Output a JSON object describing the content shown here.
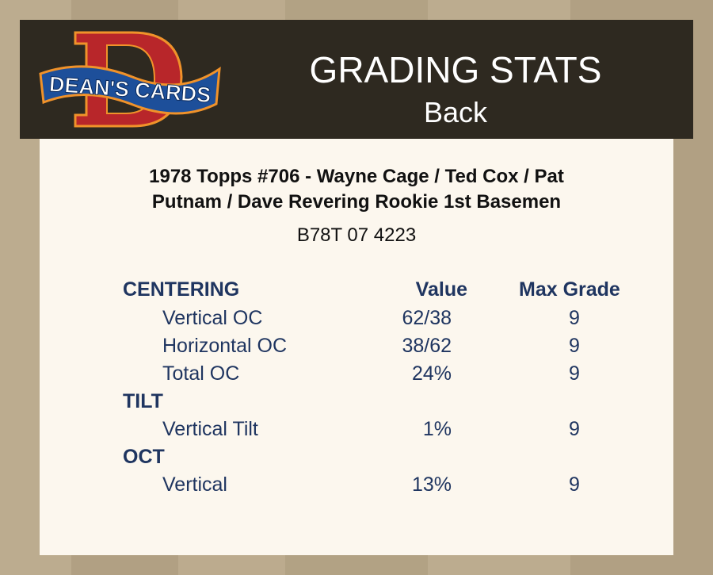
{
  "header": {
    "logo_text": "DEAN'S CARDS",
    "title": "GRADING STATS",
    "subtitle": "Back"
  },
  "card": {
    "line1": "1978 Topps #706  -  Wayne Cage / Ted Cox / Pat",
    "line2": "Putnam / Dave Revering Rookie 1st Basemen",
    "cert": "B78T 07 4223"
  },
  "table": {
    "col_value": "Value",
    "col_grade": "Max Grade",
    "sections": [
      {
        "name": "CENTERING",
        "rows": [
          {
            "label": "Vertical OC",
            "value": "62/38",
            "grade": "9"
          },
          {
            "label": "Horizontal OC",
            "value": "38/62",
            "grade": "9"
          },
          {
            "label": "Total OC",
            "value": "24%",
            "grade": "9"
          }
        ]
      },
      {
        "name": "TILT",
        "rows": [
          {
            "label": "Vertical Tilt",
            "value": "1%",
            "grade": "9"
          }
        ]
      },
      {
        "name": "OCT",
        "rows": [
          {
            "label": "Vertical",
            "value": "13%",
            "grade": "9"
          }
        ]
      }
    ]
  },
  "colors": {
    "header_bg": "#2e2920",
    "panel_bg": "#fcf7ee",
    "text_navy": "#1f3560",
    "logo_red": "#b8262a",
    "logo_blue": "#1d4f9a"
  }
}
